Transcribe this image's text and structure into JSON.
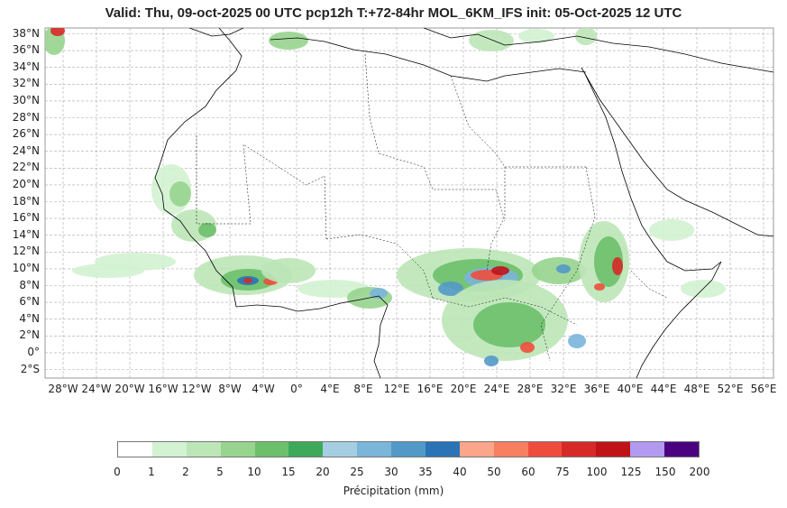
{
  "header": {
    "title": "Valid: Thu, 09-oct-2025   00 UTC   pcp12h   T:+72-84hr   MOL_6KM_IFS   init: 05-Oct-2025    12 UTC"
  },
  "map": {
    "lat_labels": [
      "38°N",
      "36°N",
      "34°N",
      "32°N",
      "30°N",
      "28°N",
      "26°N",
      "24°N",
      "22°N",
      "20°N",
      "18°N",
      "16°N",
      "14°N",
      "12°N",
      "10°N",
      "8°N",
      "6°N",
      "4°N",
      "2°N",
      "0°",
      "2°S"
    ],
    "lon_labels": [
      "28°W",
      "24°W",
      "20°W",
      "16°W",
      "12°W",
      "8°W",
      "4°W",
      "0°",
      "4°E",
      "8°E",
      "12°E",
      "16°E",
      "20°E",
      "24°E",
      "28°E",
      "32°E",
      "36°E",
      "40°E",
      "44°E",
      "48°E",
      "52°E",
      "56°E"
    ],
    "colors": {
      "coast": "#000000",
      "grid": "#aaaaaa"
    }
  },
  "colorbar": {
    "label": "Précipitation (mm)",
    "ticks": [
      "0",
      "1",
      "2",
      "5",
      "10",
      "15",
      "20",
      "25",
      "30",
      "35",
      "40",
      "50",
      "60",
      "75",
      "100",
      "125",
      "150",
      "200"
    ],
    "colors": [
      "#ffffff",
      "#d3f2d1",
      "#bde6b7",
      "#97d48e",
      "#6cc06c",
      "#3fa95a",
      "#a6cee3",
      "#7bb5da",
      "#5399c8",
      "#2a73b6",
      "#fba58a",
      "#f67f60",
      "#ef4d3c",
      "#d62a28",
      "#c01318",
      "#b19af0",
      "#4a0280"
    ]
  }
}
